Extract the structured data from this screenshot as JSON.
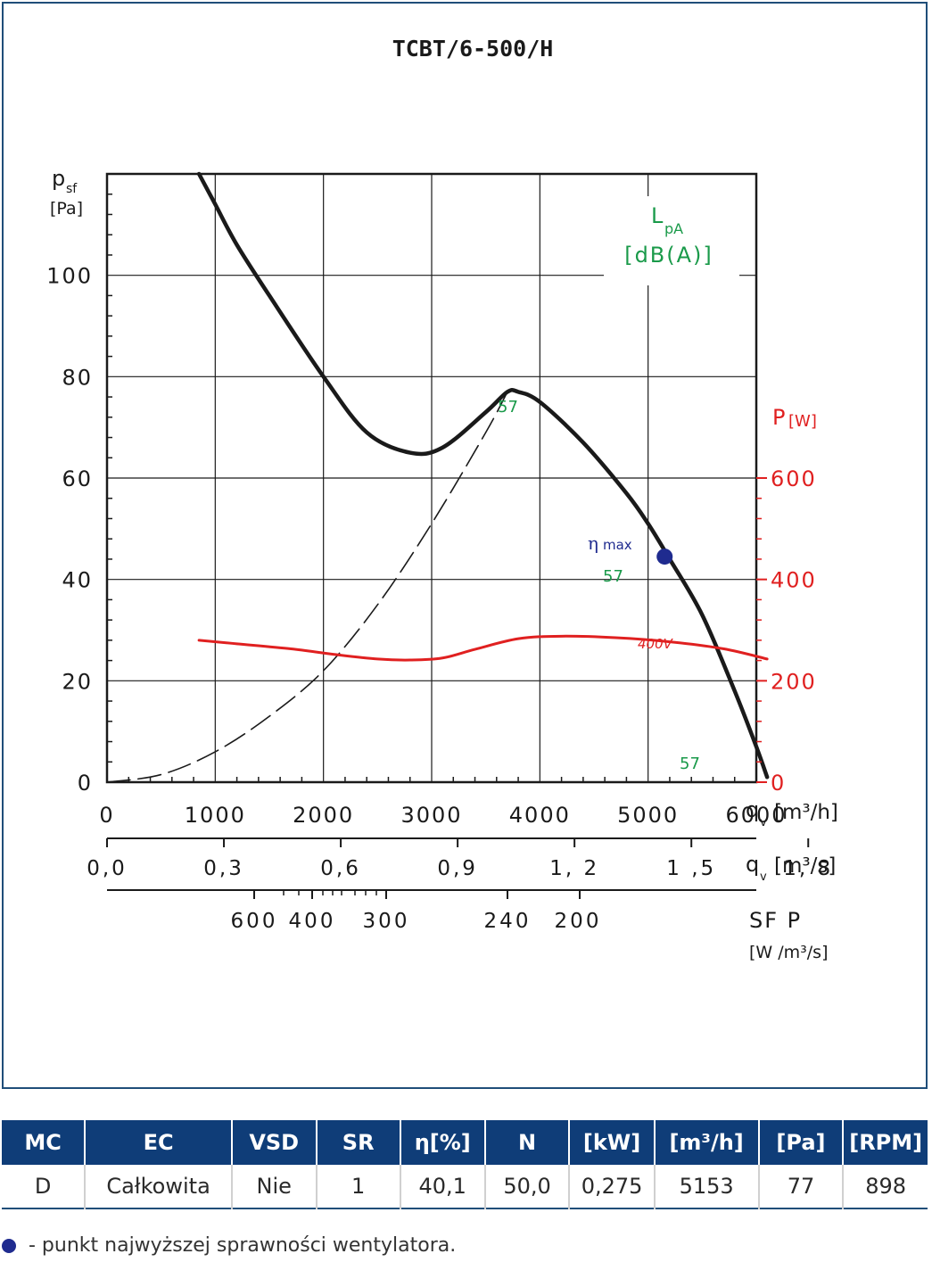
{
  "chart_data": {
    "type": "line",
    "title": "TCBT/6-500/H",
    "ylabel_main": "p",
    "ylabel_sub": "sf",
    "ylabel_unit": "[Pa]",
    "ylim": [
      0,
      120
    ],
    "yticks": [
      0,
      20,
      40,
      60,
      80,
      100
    ],
    "xlim": [
      0,
      6000
    ],
    "xticks": [
      0,
      1000,
      2000,
      3000,
      4000,
      5000,
      6000
    ],
    "xlabel_main": "q",
    "xlabel_sub": "v",
    "xlabel_unit_m3h": "[m³/h]",
    "xticks_m3s": [
      "0,0",
      "0,3",
      "0,6",
      "0,9",
      "1, 2",
      "1 ,5",
      "1, 8"
    ],
    "xlabel_unit_m3s": "[m³/s]",
    "sfp_ticks": [
      "600",
      "400",
      "300",
      "240",
      "200"
    ],
    "sfp_label": "SF P",
    "sfp_unit": "[W /m³/s]",
    "right_axis_label": "P",
    "right_axis_unit": "[W]",
    "right_ylim": [
      0,
      1200
    ],
    "right_yticks": [
      "0",
      "200",
      "400",
      "600"
    ],
    "noise_label": "L",
    "noise_sub": "pA",
    "noise_unit": "[dB(A)]",
    "noise_values": [
      "57",
      "57",
      "57"
    ],
    "voltage_label": "400V",
    "eta_label": "η",
    "eta_sub": "max",
    "series": [
      {
        "role": "pressure",
        "color": "#1a1a1a",
        "x": [
          850,
          1000,
          1200,
          1500,
          2000,
          2400,
          2800,
          3100,
          3500,
          3700,
          3800,
          4000,
          4400,
          4800,
          5000,
          5200,
          5500,
          5800,
          6000,
          6100
        ],
        "y": [
          120,
          114,
          106,
          96,
          80,
          69,
          65,
          66,
          73,
          77,
          77,
          75,
          67,
          57,
          51,
          44,
          33,
          18,
          7,
          1
        ]
      },
      {
        "role": "system-curve",
        "dashed": true,
        "color": "#1a1a1a",
        "x": [
          0,
          500,
          1000,
          1500,
          2000,
          2500,
          3000,
          3500,
          3700
        ],
        "y": [
          0,
          1.5,
          6,
          13,
          22,
          35,
          51,
          69,
          77
        ]
      },
      {
        "role": "power",
        "color": "#e02020",
        "x": [
          850,
          1200,
          1700,
          2100,
          2500,
          2800,
          3100,
          3400,
          3800,
          4200,
          4700,
          5200,
          5700,
          6100
        ],
        "y": [
          280,
          273,
          263,
          252,
          243,
          241,
          245,
          262,
          283,
          288,
          285,
          277,
          263,
          243
        ]
      }
    ],
    "eta_max_point": {
      "x": 5153,
      "y": 44.5
    }
  },
  "table": {
    "headers": [
      "MC",
      "EC",
      "VSD",
      "SR",
      "η[%]",
      "N",
      "[kW]",
      "[m³/h]",
      "[Pa]",
      "[RPM]"
    ],
    "row": [
      "D",
      "Całkowita",
      "Nie",
      "1",
      "40,1",
      "50,0",
      "0,275",
      "5153",
      "77",
      "898"
    ]
  },
  "legend_note": "- punkt najwyższej sprawności wentylatora.",
  "colors": {
    "frame": "#1f4e79",
    "header_bg": "#0f3d78",
    "power": "#e02020",
    "noise": "#1a9a4a",
    "eta_point": "#1f2b8f"
  }
}
